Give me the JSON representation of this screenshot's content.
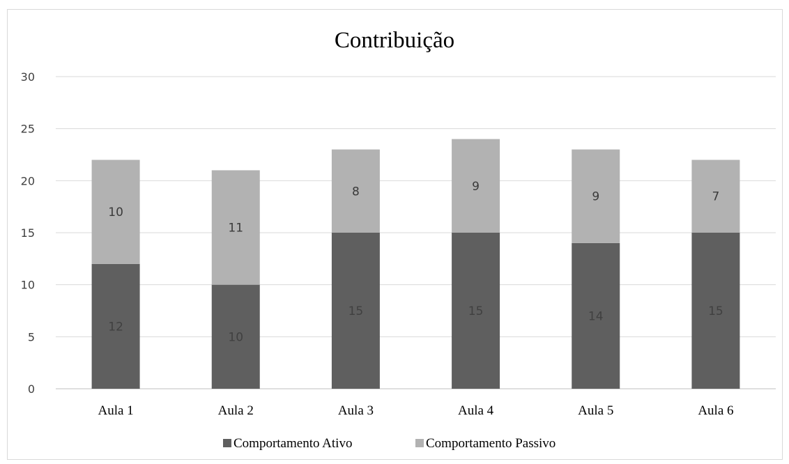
{
  "chart_data": {
    "type": "bar",
    "stacked": true,
    "title": "Contribuição",
    "categories": [
      "Aula 1",
      "Aula 2",
      "Aula 3",
      "Aula 4",
      "Aula 5",
      "Aula 6"
    ],
    "series": [
      {
        "name": "Comportamento Ativo",
        "values": [
          12,
          10,
          15,
          15,
          14,
          15
        ],
        "color": "#5f5f5f"
      },
      {
        "name": "Comportamento Passivo",
        "values": [
          10,
          11,
          8,
          9,
          9,
          7
        ],
        "color": "#b2b2b2"
      }
    ],
    "ylim": [
      0,
      30
    ],
    "yticks": [
      "0",
      "5",
      "10",
      "15",
      "20",
      "25",
      "30"
    ],
    "grid": true,
    "legend": "bottom",
    "data_labels": true
  }
}
